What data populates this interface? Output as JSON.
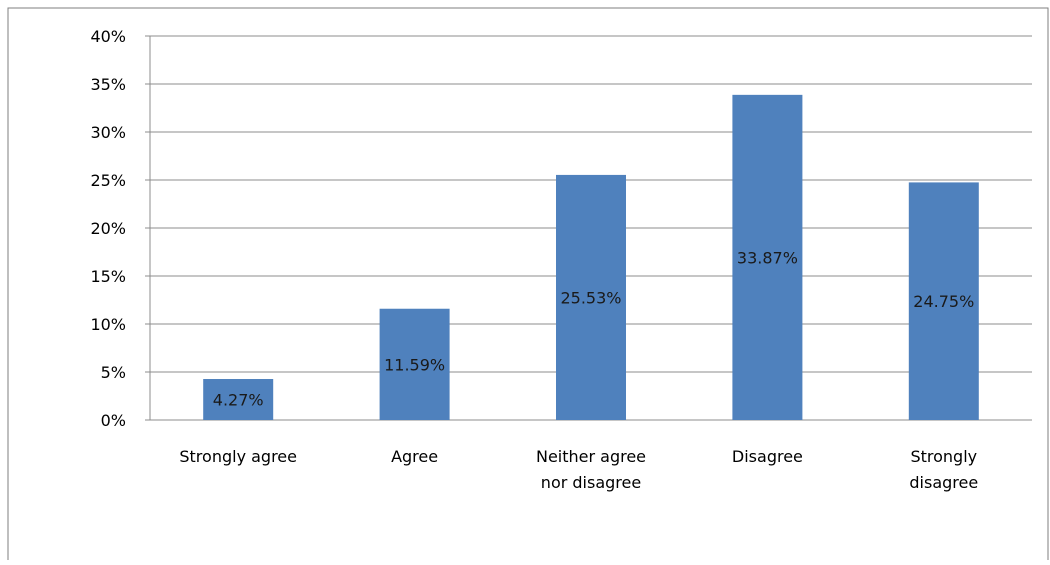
{
  "chart_data": {
    "type": "bar",
    "categories": [
      [
        "Strongly agree"
      ],
      [
        "Agree"
      ],
      [
        "Neither agree",
        "nor disagree"
      ],
      [
        "Disagree"
      ],
      [
        "Strongly",
        "disagree"
      ]
    ],
    "values": [
      4.27,
      11.59,
      25.53,
      33.87,
      24.75
    ],
    "data_labels": [
      "4.27%",
      "11.59%",
      "25.53%",
      "33.87%",
      "24.75%"
    ],
    "y_ticks": [
      "0%",
      "5%",
      "10%",
      "15%",
      "20%",
      "25%",
      "30%",
      "35%",
      "40%"
    ],
    "ylim": [
      0,
      40
    ],
    "grid": true,
    "legend": "none",
    "colors": {
      "bar": "#4f81bd",
      "gridline": "#8c8c8c",
      "frame": "#7f7f7f"
    }
  }
}
